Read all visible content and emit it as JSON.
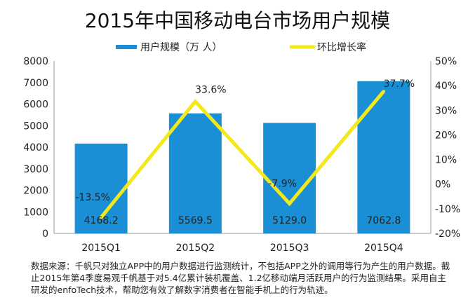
{
  "chart_data": {
    "type": "bar+line",
    "title": "2015年中国移动电台市场用户规模",
    "categories": [
      "2015Q1",
      "2015Q2",
      "2015Q3",
      "2015Q4"
    ],
    "series": [
      {
        "name": "用户规模（万 人）",
        "type": "bar",
        "axis": "left",
        "color": "#1a8fd6",
        "values": [
          4168.2,
          5569.5,
          5129.0,
          7062.8
        ],
        "labels": [
          "4168.2",
          "5569.5",
          "5129.0",
          "7062.8"
        ]
      },
      {
        "name": "环比增长率",
        "type": "line",
        "axis": "right",
        "color": "#f2e81a",
        "values": [
          -13.5,
          33.6,
          -7.9,
          37.7
        ],
        "labels": [
          "-13.5%",
          "33.6%",
          "-7.9%",
          "37.7%"
        ]
      }
    ],
    "yleft": {
      "range": [
        0,
        8000
      ],
      "ticks": [
        "0",
        "1000",
        "2000",
        "3000",
        "4000",
        "5000",
        "6000",
        "7000",
        "8000"
      ]
    },
    "yright": {
      "range": [
        -20,
        50
      ],
      "ticks": [
        "-20%",
        "-10%",
        "0%",
        "10%",
        "20%",
        "30%",
        "40%",
        "50%"
      ]
    },
    "legend": "top-center",
    "grid": false
  },
  "note": "数据来源：千帆只对独立APP中的用户数据进行监测统计，不包括APP之外的调用等行为产生的用户数据。截止2015年第4季度易观千帆基于对5.4亿累计装机覆盖、1.2亿移动端月活跃用户的行为监测结果。采用自主研发的enfoTech技术，帮助您有效了解数字消费者在智能手机上的行为轨迹。"
}
